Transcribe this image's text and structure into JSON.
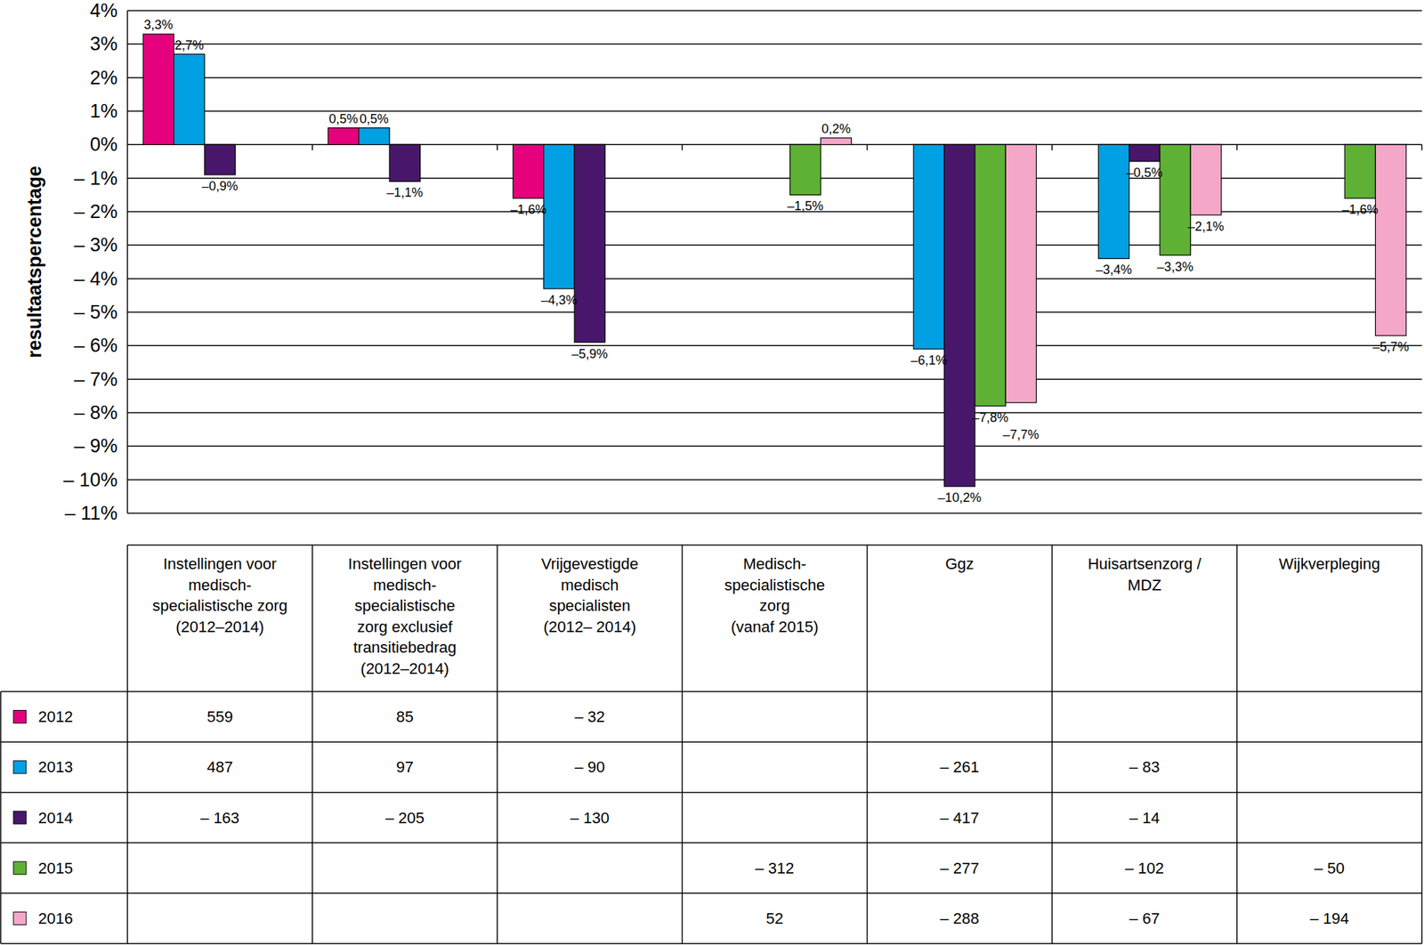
{
  "chart_data": {
    "type": "bar",
    "y_label": "resultaatspercentage",
    "categories": [
      "Instellingen voor\nmedisch-\nspecialistische zorg\n(2012–2014)",
      "Instellingen voor\nmedisch-\nspecialistische\nzorg exclusief\ntransitiebedrag\n(2012–2014)",
      "Vrijgevestigde\nmedisch\nspecialisten\n(2012– 2014)",
      "Medisch-\nspecialistische\nzorg\n(vanaf 2015)",
      "Ggz",
      "Huisartsenzorg /\nMDZ",
      "Wijkverpleging"
    ],
    "series": [
      {
        "name": "2012",
        "color": "#e5007d",
        "values": [
          3.3,
          0.5,
          -1.6,
          null,
          null,
          null,
          null
        ],
        "value_labels": [
          "3,3%",
          "0,5%",
          "–1,6%",
          null,
          null,
          null,
          null
        ],
        "amounts": [
          559,
          85,
          -32,
          null,
          null,
          null,
          null
        ],
        "amount_labels": [
          "559",
          "85",
          "– 32",
          null,
          null,
          null,
          null
        ]
      },
      {
        "name": "2013",
        "color": "#00a0e3",
        "values": [
          2.7,
          0.5,
          -4.3,
          null,
          -6.1,
          -3.4,
          null
        ],
        "value_labels": [
          "2,7%",
          "0,5%",
          "–4,3%",
          null,
          "–6,1%",
          "–3,4%",
          null
        ],
        "amounts": [
          487,
          97,
          -90,
          null,
          -261,
          -83,
          null
        ],
        "amount_labels": [
          "487",
          "97",
          "– 90",
          null,
          "– 261",
          "– 83",
          null
        ]
      },
      {
        "name": "2014",
        "color": "#48176b",
        "values": [
          -0.9,
          -1.1,
          -5.9,
          null,
          -10.2,
          -0.5,
          null
        ],
        "value_labels": [
          "–0,9%",
          "–1,1%",
          "–5,9%",
          null,
          "–10,2%",
          "–0,5%",
          null
        ],
        "amounts": [
          -163,
          -205,
          -130,
          null,
          -417,
          -14,
          null
        ],
        "amount_labels": [
          "– 163",
          "– 205",
          "– 130",
          null,
          "– 417",
          "– 14",
          null
        ]
      },
      {
        "name": "2015",
        "color": "#5fb135",
        "values": [
          null,
          null,
          null,
          -1.5,
          -7.8,
          -3.3,
          -1.6
        ],
        "value_labels": [
          null,
          null,
          null,
          "–1,5%",
          "–7,8%",
          "–3,3%",
          "–1,6%"
        ],
        "amounts": [
          null,
          null,
          null,
          -312,
          -277,
          -102,
          -50
        ],
        "amount_labels": [
          null,
          null,
          null,
          "– 312",
          "– 277",
          "– 102",
          "– 50"
        ]
      },
      {
        "name": "2016",
        "color": "#f4a7c9",
        "values": [
          null,
          null,
          null,
          0.2,
          -7.7,
          -2.1,
          -5.7
        ],
        "value_labels": [
          null,
          null,
          null,
          "0,2%",
          "–7,7%",
          "–2,1%",
          "–5,7%"
        ],
        "amounts": [
          null,
          null,
          null,
          52,
          -288,
          -67,
          -194
        ],
        "amount_labels": [
          null,
          null,
          null,
          "52",
          "– 288",
          "– 67",
          "– 194"
        ]
      }
    ],
    "ylim": [
      -11,
      4
    ],
    "yticks": [
      {
        "value": 4,
        "label": "4%"
      },
      {
        "value": 3,
        "label": "3%"
      },
      {
        "value": 2,
        "label": "2%"
      },
      {
        "value": 1,
        "label": "1%"
      },
      {
        "value": 0,
        "label": "0%"
      },
      {
        "value": -1,
        "label": "– 1%"
      },
      {
        "value": -2,
        "label": "– 2%"
      },
      {
        "value": -3,
        "label": "– 3%"
      },
      {
        "value": -4,
        "label": "– 4%"
      },
      {
        "value": -5,
        "label": "– 5%"
      },
      {
        "value": -6,
        "label": "– 6%"
      },
      {
        "value": -7,
        "label": "– 7%"
      },
      {
        "value": -8,
        "label": "– 8%"
      },
      {
        "value": -9,
        "label": "– 9%"
      },
      {
        "value": -10,
        "label": "– 10%"
      },
      {
        "value": -11,
        "label": "– 11%"
      }
    ],
    "grid": true,
    "data_labels": true
  }
}
